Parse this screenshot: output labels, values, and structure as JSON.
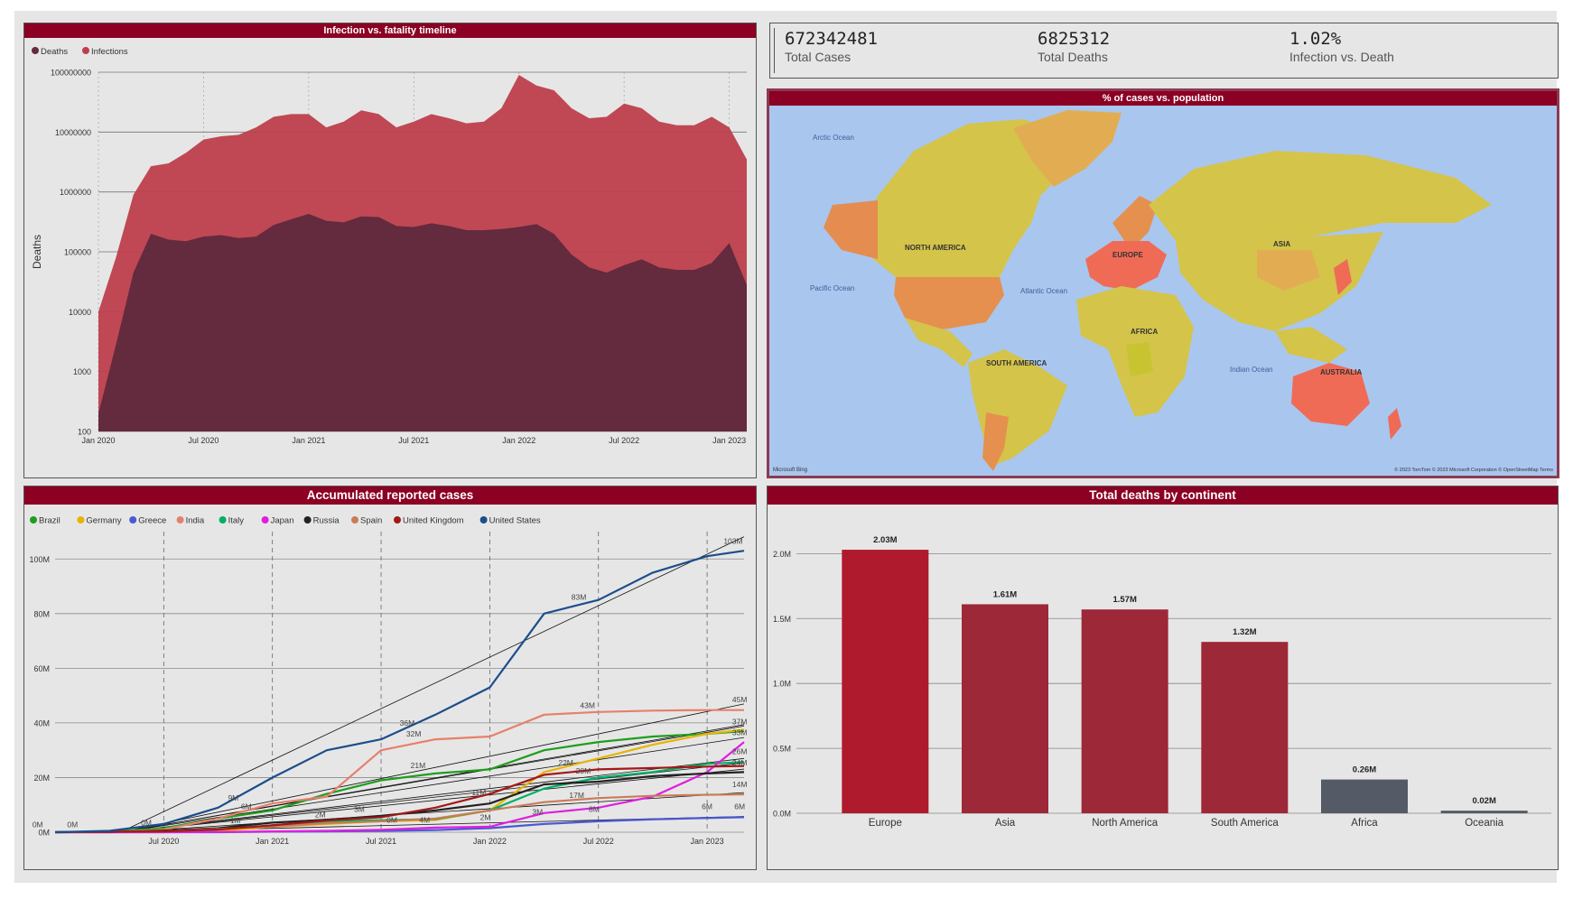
{
  "kpis": [
    {
      "value": "672342481",
      "label": "Total Cases"
    },
    {
      "value": "6825312",
      "label": "Total Deaths"
    },
    {
      "value": "1.02%",
      "label": "Infection vs. Death"
    }
  ],
  "colors": {
    "header": "#8b0023",
    "deaths": "#642a3d",
    "infections": "#bd3f4c",
    "europe": "#af1b2c",
    "continent": "#9c2838",
    "low": "#545b66"
  },
  "chart_data": [
    {
      "type": "area",
      "title": "Infection vs. fatality timeline",
      "ylabel": "Deaths",
      "yscale": "log",
      "ylim": [
        100,
        100000000
      ],
      "yticks": [
        "100000000",
        "10000000",
        "1000000",
        "100000",
        "10000",
        "1000",
        "100"
      ],
      "xticks": [
        "Jan 2020",
        "Jul 2020",
        "Jan 2021",
        "Jul 2021",
        "Jan 2022",
        "Jul 2022",
        "Jan 2023"
      ],
      "x_month_index": [
        0,
        1,
        2,
        3,
        4,
        5,
        6,
        7,
        8,
        9,
        10,
        11,
        12,
        13,
        14,
        15,
        16,
        17,
        18,
        19,
        20,
        21,
        22,
        23,
        24,
        25,
        26,
        27,
        28,
        29,
        30,
        31,
        32,
        33,
        34,
        35,
        36,
        37
      ],
      "legend": [
        "Deaths",
        "Infections"
      ],
      "series": [
        {
          "name": "Infections",
          "values": [
            10000,
            80000,
            900000,
            2700000,
            3000000,
            4500000,
            7500000,
            8500000,
            9000000,
            12000000,
            18000000,
            20000000,
            20000000,
            12000000,
            15000000,
            23000000,
            20000000,
            12000000,
            15000000,
            20000000,
            17000000,
            14000000,
            15000000,
            25000000,
            90000000,
            60000000,
            50000000,
            25000000,
            17000000,
            18000000,
            30000000,
            25000000,
            15000000,
            13000000,
            13000000,
            18000000,
            12000000,
            3500000
          ]
        },
        {
          "name": "Deaths",
          "values": [
            200,
            2800,
            45000,
            200000,
            160000,
            150000,
            180000,
            190000,
            170000,
            180000,
            280000,
            350000,
            430000,
            330000,
            310000,
            390000,
            380000,
            270000,
            260000,
            300000,
            270000,
            230000,
            230000,
            240000,
            260000,
            290000,
            200000,
            90000,
            55000,
            45000,
            60000,
            75000,
            55000,
            50000,
            50000,
            65000,
            140000,
            28000
          ]
        }
      ]
    },
    {
      "type": "line",
      "title": "Accumulated reported cases",
      "ylim": [
        0,
        110
      ],
      "yticks": [
        "0M",
        "20M",
        "40M",
        "60M",
        "80M",
        "100M"
      ],
      "xticks": [
        "Jul 2020",
        "Jan 2021",
        "Jul 2021",
        "Jan 2022",
        "Jul 2022",
        "Jan 2023"
      ],
      "x_year": [
        2020.0,
        2020.25,
        2020.5,
        2020.75,
        2021.0,
        2021.25,
        2021.5,
        2021.75,
        2022.0,
        2022.25,
        2022.5,
        2022.75,
        2023.0,
        2023.17
      ],
      "series": [
        {
          "name": "Brazil",
          "color": "#1e9e1e",
          "values": [
            0,
            0.2,
            1.5,
            5,
            8,
            14,
            19,
            21.5,
            23,
            30,
            33,
            35,
            36,
            37
          ]
        },
        {
          "name": "Germany",
          "color": "#e6b400",
          "values": [
            0,
            0.2,
            0.2,
            0.4,
            2,
            3,
            4,
            4.5,
            8,
            22,
            27,
            32,
            36,
            37.5
          ]
        },
        {
          "name": "Greece",
          "color": "#4a5ad6",
          "values": [
            0,
            0,
            0,
            0,
            0.2,
            0.3,
            0.5,
            0.8,
            1.5,
            3,
            4,
            4.7,
            5.2,
            5.5
          ]
        },
        {
          "name": "India",
          "color": "#e5806a",
          "values": [
            0,
            0,
            1,
            5,
            10.5,
            13,
            30,
            34,
            35,
            43,
            44,
            44.5,
            44.7,
            44.7
          ]
        },
        {
          "name": "Italy",
          "color": "#00b065",
          "values": [
            0,
            0.2,
            0.3,
            1,
            2.5,
            4,
            4.4,
            4.8,
            8,
            16,
            20,
            22,
            25,
            25.7
          ]
        },
        {
          "name": "Japan",
          "color": "#e01ee0",
          "values": [
            0,
            0,
            0,
            0.1,
            0.3,
            0.5,
            0.9,
            1.7,
            2,
            7,
            9,
            13,
            22,
            33
          ]
        },
        {
          "name": "Russia",
          "color": "#222222",
          "values": [
            0,
            0.1,
            0.6,
            1.5,
            3.5,
            4.5,
            6,
            8,
            10.5,
            17.5,
            18.5,
            20.5,
            21.5,
            22
          ]
        },
        {
          "name": "Spain",
          "color": "#c97c58",
          "values": [
            0,
            0.2,
            0.3,
            1.2,
            2,
            3.3,
            4,
            5,
            8,
            11,
            12.5,
            13.3,
            13.7,
            13.8
          ]
        },
        {
          "name": "United Kingdom",
          "color": "#a31818",
          "values": [
            0,
            0.2,
            0.3,
            1,
            2.5,
            4.3,
            5.5,
            9,
            14,
            21,
            23,
            23.5,
            24,
            24.2
          ]
        },
        {
          "name": "United States",
          "color": "#1b4e8c",
          "values": [
            0,
            0.5,
            3,
            9,
            20,
            30,
            34,
            43,
            53,
            80,
            85,
            95,
            101,
            103
          ]
        }
      ],
      "data_labels": [
        {
          "text": "0M",
          "x": 2019.92,
          "y": 1.8
        },
        {
          "text": "0M",
          "x": 2020.08,
          "y": 1.8
        },
        {
          "text": "0M",
          "x": 2020.42,
          "y": 2.4
        },
        {
          "text": "9M",
          "x": 2020.82,
          "y": 11.5
        },
        {
          "text": "6M",
          "x": 2020.88,
          "y": 8.5
        },
        {
          "text": "1M",
          "x": 2020.83,
          "y": 3.3
        },
        {
          "text": "2M",
          "x": 2021.22,
          "y": 5.5
        },
        {
          "text": "3M",
          "x": 2021.4,
          "y": 7.5
        },
        {
          "text": "36M",
          "x": 2021.62,
          "y": 39
        },
        {
          "text": "32M",
          "x": 2021.65,
          "y": 35
        },
        {
          "text": "21M",
          "x": 2021.67,
          "y": 23.5
        },
        {
          "text": "4M",
          "x": 2021.7,
          "y": 3.5
        },
        {
          "text": "0M",
          "x": 2021.55,
          "y": 3.5
        },
        {
          "text": "11M",
          "x": 2021.95,
          "y": 13.5
        },
        {
          "text": "2M",
          "x": 2021.98,
          "y": 4.5
        },
        {
          "text": "22M",
          "x": 2022.35,
          "y": 24.5
        },
        {
          "text": "20M",
          "x": 2022.43,
          "y": 21.5
        },
        {
          "text": "17M",
          "x": 2022.4,
          "y": 12.5
        },
        {
          "text": "3M",
          "x": 2022.22,
          "y": 6.5
        },
        {
          "text": "8M",
          "x": 2022.48,
          "y": 7.5
        },
        {
          "text": "83M",
          "x": 2022.41,
          "y": 85
        },
        {
          "text": "43M",
          "x": 2022.45,
          "y": 45.5
        },
        {
          "text": "103M",
          "x": 2023.12,
          "y": 105.5
        },
        {
          "text": "45M",
          "x": 2023.15,
          "y": 47.5
        },
        {
          "text": "37M",
          "x": 2023.15,
          "y": 39.5
        },
        {
          "text": "33M",
          "x": 2023.15,
          "y": 35.5
        },
        {
          "text": "26M",
          "x": 2023.15,
          "y": 28.5
        },
        {
          "text": "24M",
          "x": 2023.15,
          "y": 24.5
        },
        {
          "text": "14M",
          "x": 2023.15,
          "y": 16.5
        },
        {
          "text": "6M",
          "x": 2023.0,
          "y": 8.5
        },
        {
          "text": "6M",
          "x": 2023.15,
          "y": 8.5
        }
      ]
    },
    {
      "type": "bar",
      "title": "Total deaths by continent",
      "categories": [
        "Europe",
        "Asia",
        "North America",
        "South America",
        "Africa",
        "Oceania"
      ],
      "values": [
        2.03,
        1.61,
        1.57,
        1.32,
        0.26,
        0.02
      ],
      "value_labels": [
        "2.03M",
        "1.61M",
        "1.57M",
        "1.32M",
        "0.26M",
        "0.02M"
      ],
      "yticks": [
        "0.0M",
        "0.5M",
        "1.0M",
        "1.5M",
        "2.0M"
      ],
      "ylim": [
        0,
        2.1
      ]
    }
  ],
  "map": {
    "title": "% of cases vs. population",
    "labels": [
      "NORTH AMERICA",
      "EUROPE",
      "ASIA",
      "AFRICA",
      "SOUTH AMERICA",
      "AUSTRALIA"
    ],
    "oceans": [
      "Arctic Ocean",
      "Pacific Ocean",
      "Atlantic Ocean",
      "Indian Ocean"
    ],
    "attribution": "© 2023 TomTom  © 2023 Microsoft Corporation  © OpenStreetMap  Terms",
    "brand": "Microsoft Bing"
  }
}
